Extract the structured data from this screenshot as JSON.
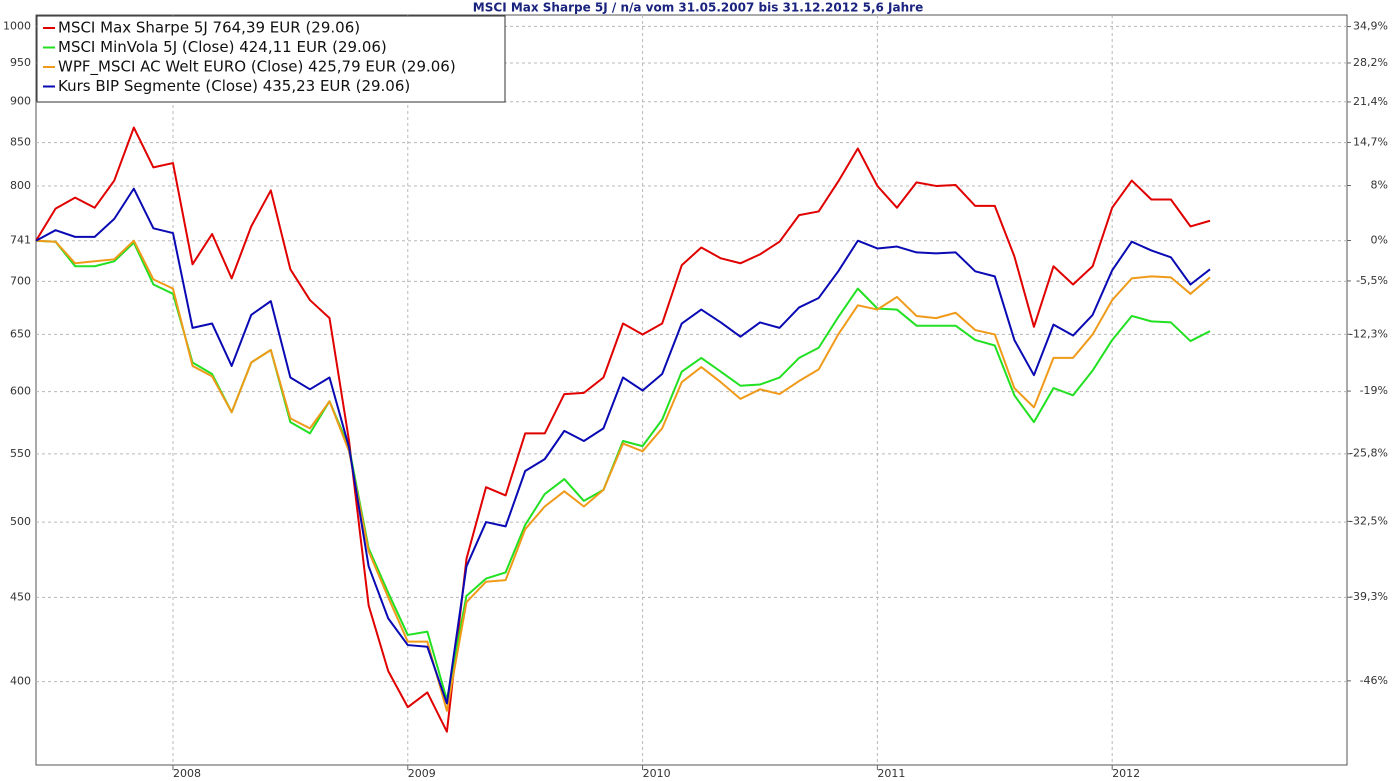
{
  "chart_data": {
    "type": "line",
    "title": "MSCI Max Sharpe 5J / n/a vom 31.05.2007 bis 31.12.2012 5,6 Jahre",
    "x": [
      "2007-05",
      "2007-06",
      "2007-07",
      "2007-08",
      "2007-09",
      "2007-10",
      "2007-11",
      "2007-12",
      "2008-01",
      "2008-02",
      "2008-03",
      "2008-04",
      "2008-05",
      "2008-06",
      "2008-07",
      "2008-08",
      "2008-09",
      "2008-10",
      "2008-11",
      "2008-12",
      "2009-01",
      "2009-02",
      "2009-03",
      "2009-04",
      "2009-05",
      "2009-06",
      "2009-07",
      "2009-08",
      "2009-09",
      "2009-10",
      "2009-11",
      "2009-12",
      "2010-01",
      "2010-02",
      "2010-03",
      "2010-04",
      "2010-05",
      "2010-06",
      "2010-07",
      "2010-08",
      "2010-09",
      "2010-10",
      "2010-11",
      "2010-12",
      "2011-01",
      "2011-02",
      "2011-03",
      "2011-04",
      "2011-05",
      "2011-06",
      "2011-07",
      "2011-08",
      "2011-09",
      "2011-10",
      "2011-11",
      "2011-12",
      "2012-01",
      "2012-02",
      "2012-03",
      "2012-04",
      "2012-05"
    ],
    "xlim": [
      "2007-05",
      "2012-12"
    ],
    "xticks": [
      2008,
      2009,
      2010,
      2011,
      2012
    ],
    "log_scale": true,
    "ylim": [
      356,
      1016
    ],
    "yticks": [
      1000,
      950,
      900,
      850,
      800,
      741,
      700,
      650,
      600,
      550,
      500,
      450,
      400
    ],
    "y2_log_percent": true,
    "y2lim": [
      -52,
      37.1
    ],
    "y2ticks": [
      {
        "value": 34.9,
        "label": "34,9%"
      },
      {
        "value": 28.2,
        "label": "28,2%"
      },
      {
        "value": 21.4,
        "label": "21,4%"
      },
      {
        "value": 14.7,
        "label": "14,7%"
      },
      {
        "value": 8,
        "label": "8%"
      },
      {
        "value": 0,
        "label": "0%"
      },
      {
        "value": -5.5,
        "label": "-5,5%"
      },
      {
        "value": -12.3,
        "label": "-12,3%"
      },
      {
        "value": -19,
        "label": "-19%"
      },
      {
        "value": -25.8,
        "label": "-25,8%"
      },
      {
        "value": -32.5,
        "label": "-32,5%"
      },
      {
        "value": -39.3,
        "label": "-39,3%"
      },
      {
        "value": -46,
        "label": "-46%"
      }
    ],
    "grid": true,
    "legend": "upper left",
    "series": [
      {
        "name": "MSCI Max Sharpe 5J 764,39 EUR (29.06)",
        "color": "#e00000",
        "values": [
          741,
          775,
          787,
          776,
          806,
          868,
          821,
          826,
          717,
          748,
          703,
          756,
          795,
          712,
          682,
          665,
          560,
          445,
          406,
          386,
          394,
          373,
          475,
          525,
          519,
          566,
          566,
          598,
          599,
          612,
          660,
          650,
          660,
          716,
          734,
          723,
          718,
          727,
          740,
          768,
          772,
          805,
          843,
          800,
          776,
          804,
          800,
          801,
          778,
          778,
          725,
          657,
          715,
          697,
          715,
          776,
          806,
          785,
          785,
          756,
          762
        ]
      },
      {
        "name": "MSCI MinVola 5J (Close) 424,11 EUR (29.06)",
        "color": "#22e022",
        "values": [
          741,
          740,
          715,
          715,
          720,
          739,
          697,
          688,
          625,
          615,
          583,
          625,
          636,
          575,
          566,
          592,
          555,
          482,
          453,
          427,
          429,
          390,
          451,
          462,
          466,
          498,
          520,
          531,
          515,
          523,
          560,
          556,
          577,
          617,
          629,
          617,
          605,
          606,
          612,
          629,
          638,
          666,
          693,
          674,
          673,
          658,
          658,
          658,
          645,
          640,
          597,
          575,
          603,
          597,
          618,
          645,
          667,
          662,
          661,
          644,
          653
        ]
      },
      {
        "name": "WPF_MSCI AC Welt EURO (Close) 425,79 EUR (29.06)",
        "color": "#f09a1a",
        "values": [
          741,
          740,
          718,
          720,
          722,
          741,
          702,
          693,
          622,
          613,
          583,
          625,
          636,
          578,
          570,
          592,
          552,
          480,
          450,
          423,
          423,
          384,
          447,
          460,
          461,
          495,
          511,
          522,
          511,
          523,
          558,
          552,
          570,
          608,
          621,
          608,
          594,
          602,
          598,
          609,
          619,
          650,
          677,
          673,
          685,
          667,
          665,
          670,
          654,
          650,
          603,
          587,
          629,
          629,
          650,
          682,
          703,
          705,
          704,
          688,
          704
        ]
      },
      {
        "name": "Kurs BIP Segmente (Close) 435,23 EUR (29.06)",
        "color": "#0a0ab4",
        "values": [
          741,
          752,
          745,
          745,
          764,
          797,
          754,
          749,
          656,
          660,
          622,
          668,
          681,
          612,
          602,
          612,
          555,
          470,
          437,
          421,
          420,
          388,
          470,
          500,
          497,
          537,
          546,
          568,
          560,
          570,
          612,
          601,
          615,
          660,
          673,
          661,
          648,
          661,
          656,
          675,
          684,
          710,
          741,
          733,
          735,
          729,
          728,
          729,
          710,
          705,
          645,
          614,
          659,
          649,
          668,
          711,
          740,
          731,
          724,
          697,
          712
        ]
      }
    ]
  }
}
